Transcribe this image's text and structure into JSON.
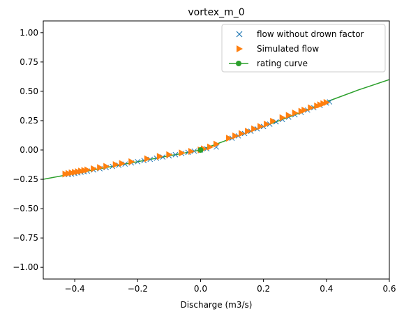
{
  "chart_data": {
    "type": "scatter",
    "title": "vortex_m_0",
    "xlabel": "Discharge (m3/s)",
    "ylabel": "",
    "xlim": [
      -0.5,
      0.6
    ],
    "ylim": [
      -1.1,
      1.1
    ],
    "xticks": [
      -0.4,
      -0.2,
      0.0,
      0.2,
      0.4,
      0.6
    ],
    "xtick_labels": [
      "−0.4",
      "−0.2",
      "0.0",
      "0.2",
      "0.4",
      "0.6"
    ],
    "yticks": [
      1.0,
      0.75,
      0.5,
      0.25,
      0.0,
      -0.25,
      -0.5,
      -0.75,
      -1.0
    ],
    "ytick_labels": [
      "1.00",
      "0.75",
      "0.50",
      "0.25",
      "0.00",
      "−0.25",
      "−0.50",
      "−0.75",
      "−1.00"
    ],
    "grid": false,
    "legend_position": "top-right",
    "colors": {
      "series1": "#1f77b4",
      "series2": "#ff7f0e",
      "series3": "#2ca02c"
    },
    "series": [
      {
        "name": "flow without drown factor",
        "marker": "x",
        "x": [
          -0.42,
          -0.41,
          -0.4,
          -0.39,
          -0.38,
          -0.37,
          -0.36,
          -0.34,
          -0.32,
          -0.3,
          -0.28,
          -0.26,
          -0.24,
          -0.22,
          -0.2,
          -0.18,
          -0.16,
          -0.14,
          -0.12,
          -0.1,
          -0.08,
          -0.06,
          -0.04,
          -0.02,
          0.0,
          0.02,
          0.05,
          0.1,
          0.12,
          0.14,
          0.16,
          0.18,
          0.2,
          0.22,
          0.24,
          0.26,
          0.28,
          0.3,
          0.32,
          0.34,
          0.36,
          0.38,
          0.4,
          0.41
        ],
        "y": [
          -0.21,
          -0.205,
          -0.2,
          -0.195,
          -0.19,
          -0.185,
          -0.18,
          -0.17,
          -0.16,
          -0.15,
          -0.14,
          -0.13,
          -0.12,
          -0.11,
          -0.1,
          -0.09,
          -0.08,
          -0.07,
          -0.06,
          -0.05,
          -0.04,
          -0.03,
          -0.02,
          -0.01,
          0.0,
          0.01,
          0.025,
          0.1,
          0.12,
          0.14,
          0.16,
          0.18,
          0.2,
          0.22,
          0.24,
          0.26,
          0.28,
          0.3,
          0.32,
          0.34,
          0.36,
          0.38,
          0.4,
          0.41
        ]
      },
      {
        "name": "Simulated flow",
        "marker": "triangle-right",
        "x": [
          -0.43,
          -0.42,
          -0.41,
          -0.4,
          -0.39,
          -0.38,
          -0.37,
          -0.36,
          -0.34,
          -0.32,
          -0.3,
          -0.27,
          -0.25,
          -0.22,
          -0.17,
          -0.13,
          -0.1,
          -0.06,
          -0.03,
          0.0,
          0.01,
          0.03,
          0.05,
          0.09,
          0.11,
          0.13,
          0.15,
          0.17,
          0.19,
          0.21,
          0.23,
          0.26,
          0.28,
          0.3,
          0.32,
          0.33,
          0.35,
          0.37,
          0.38,
          0.39,
          0.4
        ],
        "y": [
          -0.205,
          -0.2,
          -0.195,
          -0.19,
          -0.185,
          -0.18,
          -0.175,
          -0.17,
          -0.16,
          -0.15,
          -0.14,
          -0.125,
          -0.115,
          -0.1,
          -0.075,
          -0.055,
          -0.04,
          -0.025,
          -0.012,
          0.0,
          0.01,
          0.025,
          0.05,
          0.1,
          0.12,
          0.14,
          0.16,
          0.18,
          0.2,
          0.22,
          0.245,
          0.275,
          0.295,
          0.315,
          0.33,
          0.34,
          0.36,
          0.375,
          0.385,
          0.395,
          0.405
        ]
      },
      {
        "name": "rating curve",
        "marker": "line-circle",
        "x": [
          -0.5,
          -0.4,
          -0.3,
          -0.2,
          -0.1,
          0.0,
          0.1,
          0.2,
          0.3,
          0.4,
          0.5,
          0.6
        ],
        "y": [
          -0.25,
          -0.2,
          -0.15,
          -0.1,
          -0.05,
          0.0,
          0.1,
          0.2,
          0.3,
          0.41,
          0.51,
          0.6
        ],
        "highlight_point": {
          "x": 0.0,
          "y": 0.0
        }
      }
    ]
  }
}
